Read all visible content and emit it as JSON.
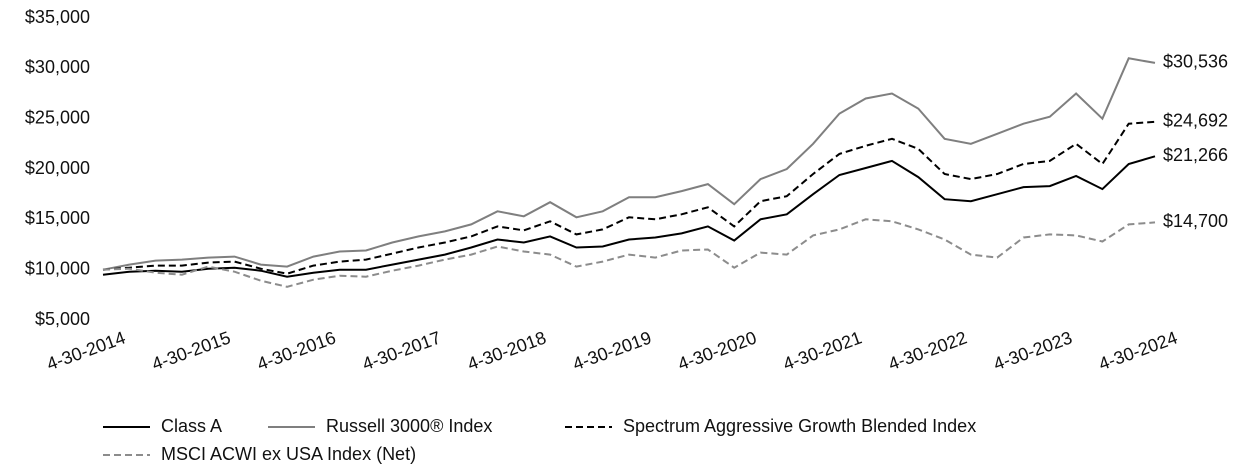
{
  "chart_data": {
    "type": "line",
    "x": [
      "4-30-2014",
      "7-31-2014",
      "10-31-2014",
      "1-31-2015",
      "4-30-2015",
      "7-31-2015",
      "10-31-2015",
      "1-31-2016",
      "4-30-2016",
      "7-31-2016",
      "10-31-2016",
      "1-31-2017",
      "4-30-2017",
      "7-31-2017",
      "10-31-2017",
      "1-31-2018",
      "4-30-2018",
      "7-31-2018",
      "10-31-2018",
      "1-31-2019",
      "4-30-2019",
      "7-31-2019",
      "10-31-2019",
      "1-31-2020",
      "4-30-2020",
      "7-31-2020",
      "10-31-2020",
      "1-31-2021",
      "4-30-2021",
      "7-31-2021",
      "10-31-2021",
      "1-31-2022",
      "4-30-2022",
      "7-31-2022",
      "10-31-2022",
      "1-31-2023",
      "4-30-2023",
      "7-31-2023",
      "10-31-2023",
      "1-31-2024",
      "4-30-2024"
    ],
    "xticks": [
      "4-30-2014",
      "4-30-2015",
      "4-30-2016",
      "4-30-2017",
      "4-30-2018",
      "4-30-2019",
      "4-30-2020",
      "4-30-2021",
      "4-30-2022",
      "4-30-2023",
      "4-30-2024"
    ],
    "ylim": [
      5000,
      35000
    ],
    "yticks": [
      {
        "value": 5000,
        "label": "$5,000"
      },
      {
        "value": 10000,
        "label": "$10,000"
      },
      {
        "value": 15000,
        "label": "$15,000"
      },
      {
        "value": 20000,
        "label": "$20,000"
      },
      {
        "value": 25000,
        "label": "$25,000"
      },
      {
        "value": 30000,
        "label": "$30,000"
      },
      {
        "value": 35000,
        "label": "$35,000"
      }
    ],
    "grid": false,
    "series": [
      {
        "name": "Class A",
        "color": "#000000",
        "dashed": false,
        "values": [
          9500,
          9800,
          9900,
          9800,
          10100,
          10200,
          9900,
          9300,
          9700,
          10000,
          10000,
          10500,
          11000,
          11500,
          12200,
          13000,
          12700,
          13300,
          12200,
          12300,
          13000,
          13200,
          13600,
          14300,
          12900,
          15000,
          15500,
          17500,
          19400,
          20100,
          20800,
          19200,
          17000,
          16800,
          17500,
          18200,
          18300,
          19300,
          18000,
          20500,
          21266
        ],
        "value_labels": [
          null,
          null,
          null,
          null,
          null,
          null,
          null,
          null,
          null,
          null,
          null,
          null,
          null,
          null,
          null,
          null,
          null,
          null,
          null,
          null,
          null,
          null,
          null,
          null,
          null,
          null,
          null,
          null,
          null,
          null,
          null,
          null,
          null,
          null,
          null,
          null,
          null,
          null,
          null,
          null,
          "$21,266"
        ]
      },
      {
        "name": "Russell 3000® Index",
        "color": "#7f7f7f",
        "dashed": false,
        "values": [
          10000,
          10500,
          10900,
          11000,
          11200,
          11300,
          10500,
          10300,
          11300,
          11800,
          11900,
          12700,
          13300,
          13800,
          14500,
          15800,
          15300,
          16700,
          15200,
          15800,
          17200,
          17200,
          17800,
          18500,
          16500,
          19000,
          20000,
          22500,
          25500,
          27000,
          27500,
          26000,
          23000,
          22500,
          23500,
          24500,
          25200,
          27500,
          25000,
          31000,
          30536
        ],
        "value_labels": [
          null,
          null,
          null,
          null,
          null,
          null,
          null,
          null,
          null,
          null,
          null,
          null,
          null,
          null,
          null,
          null,
          null,
          null,
          null,
          null,
          null,
          null,
          null,
          null,
          null,
          null,
          null,
          null,
          null,
          null,
          null,
          null,
          null,
          null,
          null,
          null,
          null,
          null,
          null,
          null,
          "$30,536"
        ]
      },
      {
        "name": "Spectrum Aggressive Growth Blended Index",
        "color": "#000000",
        "dashed": true,
        "values": [
          10000,
          10200,
          10400,
          10400,
          10700,
          10800,
          10100,
          9600,
          10400,
          10800,
          11000,
          11600,
          12200,
          12700,
          13300,
          14300,
          13900,
          14800,
          13500,
          14000,
          15200,
          15000,
          15500,
          16200,
          14300,
          16800,
          17300,
          19500,
          21500,
          22300,
          23000,
          22000,
          19500,
          19000,
          19500,
          20500,
          20800,
          22500,
          20500,
          24500,
          24692
        ],
        "value_labels": [
          null,
          null,
          null,
          null,
          null,
          null,
          null,
          null,
          null,
          null,
          null,
          null,
          null,
          null,
          null,
          null,
          null,
          null,
          null,
          null,
          null,
          null,
          null,
          null,
          null,
          null,
          null,
          null,
          null,
          null,
          null,
          null,
          null,
          null,
          null,
          null,
          null,
          null,
          null,
          null,
          "$24,692"
        ]
      },
      {
        "name": "MSCI ACWI ex USA Index (Net)",
        "color": "#8c8c8c",
        "dashed": true,
        "values": [
          10000,
          10100,
          9700,
          9500,
          10300,
          9800,
          8900,
          8300,
          9000,
          9400,
          9300,
          9900,
          10400,
          11000,
          11500,
          12300,
          11800,
          11500,
          10300,
          10800,
          11500,
          11200,
          11900,
          12000,
          10200,
          11700,
          11500,
          13400,
          14000,
          15000,
          14800,
          14000,
          13000,
          11500,
          11200,
          13200,
          13500,
          13400,
          12800,
          14500,
          14700
        ],
        "value_labels": [
          null,
          null,
          null,
          null,
          null,
          null,
          null,
          null,
          null,
          null,
          null,
          null,
          null,
          null,
          null,
          null,
          null,
          null,
          null,
          null,
          null,
          null,
          null,
          null,
          null,
          null,
          null,
          null,
          null,
          null,
          null,
          null,
          null,
          null,
          null,
          null,
          null,
          null,
          null,
          null,
          "$14,700"
        ]
      }
    ]
  }
}
